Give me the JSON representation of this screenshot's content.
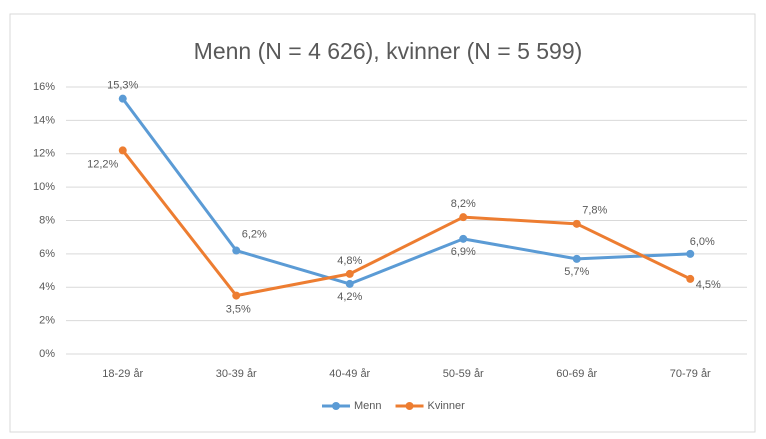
{
  "chart_data": {
    "type": "line",
    "title": "Menn (N = 4 626), kvinner (N = 5 599)",
    "categories": [
      "18-29 år",
      "30-39 år",
      "40-49 år",
      "50-59 år",
      "60-69 år",
      "70-79 år"
    ],
    "series": [
      {
        "name": "Menn",
        "color": "#5b9bd5",
        "values": [
          15.3,
          6.2,
          4.2,
          6.9,
          5.7,
          6.0
        ],
        "value_labels": [
          "15,3%",
          "6,2%",
          "4,2%",
          "6,9%",
          "5,7%",
          "6,0%"
        ]
      },
      {
        "name": "Kvinner",
        "color": "#ed7d31",
        "values": [
          12.2,
          3.5,
          4.8,
          8.2,
          7.8,
          4.5
        ],
        "value_labels": [
          "12,2%",
          "3,5%",
          "4,8%",
          "8,2%",
          "7,8%",
          "4,5%"
        ]
      }
    ],
    "ylim": [
      0,
      16
    ],
    "yticks": [
      {
        "value": 0,
        "label": "0%"
      },
      {
        "value": 2,
        "label": "2%"
      },
      {
        "value": 4,
        "label": "4%"
      },
      {
        "value": 6,
        "label": "6%"
      },
      {
        "value": 8,
        "label": "8%"
      },
      {
        "value": 10,
        "label": "10%"
      },
      {
        "value": 12,
        "label": "12%"
      },
      {
        "value": 14,
        "label": "14%"
      },
      {
        "value": 16,
        "label": "16%"
      }
    ],
    "grid": true,
    "legend": "bottom"
  }
}
